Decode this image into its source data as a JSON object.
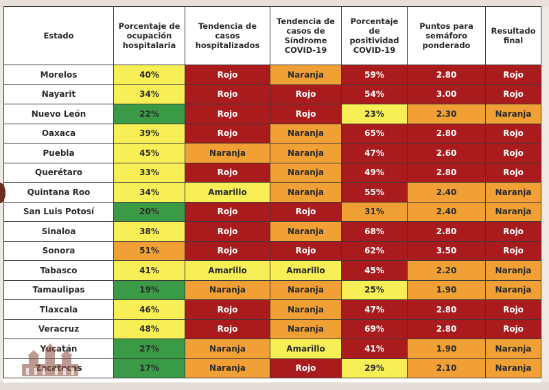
{
  "headers": [
    "Estado",
    "Porcentaje de ocupación hospitalaria",
    "Tendencia de casos hospitalizados",
    "Tendencia de casos de Síndrome COVID-19",
    "Porcentaje de positividad COVID-19",
    "Puntos para semáforo ponderado",
    "Resultado final"
  ],
  "rows": [
    {
      "cells": [
        "Morelos",
        "40%",
        "Rojo",
        "Naranja",
        "59%",
        "2.80",
        "Rojo"
      ],
      "colors": [
        "state",
        "amarillo",
        "rojo",
        "naranja",
        "rojo",
        "rojo",
        "rojo"
      ]
    },
    {
      "cells": [
        "Nayarit",
        "34%",
        "Rojo",
        "Rojo",
        "54%",
        "3.00",
        "Rojo"
      ],
      "colors": [
        "state",
        "amarillo",
        "rojo",
        "rojo",
        "rojo",
        "rojo",
        "rojo"
      ]
    },
    {
      "cells": [
        "Nuevo León",
        "22%",
        "Rojo",
        "Rojo",
        "23%",
        "2.30",
        "Naranja"
      ],
      "colors": [
        "state",
        "verde",
        "rojo",
        "rojo",
        "amarillo",
        "naranja",
        "naranja"
      ]
    },
    {
      "cells": [
        "Oaxaca",
        "39%",
        "Rojo",
        "Naranja",
        "65%",
        "2.80",
        "Rojo"
      ],
      "colors": [
        "state",
        "amarillo",
        "rojo",
        "naranja",
        "rojo",
        "rojo",
        "rojo"
      ]
    },
    {
      "cells": [
        "Puebla",
        "45%",
        "Naranja",
        "Naranja",
        "47%",
        "2.60",
        "Rojo"
      ],
      "colors": [
        "state",
        "amarillo",
        "naranja",
        "naranja",
        "rojo",
        "rojo",
        "rojo"
      ]
    },
    {
      "cells": [
        "Querétaro",
        "33%",
        "Rojo",
        "Naranja",
        "49%",
        "2.80",
        "Rojo"
      ],
      "colors": [
        "state",
        "amarillo",
        "rojo",
        "naranja",
        "rojo",
        "rojo",
        "rojo"
      ]
    },
    {
      "cells": [
        "Quintana Roo",
        "34%",
        "Amarillo",
        "Naranja",
        "55%",
        "2.40",
        "Naranja"
      ],
      "colors": [
        "state",
        "amarillo",
        "amarillo",
        "naranja",
        "rojo",
        "naranja",
        "naranja"
      ]
    },
    {
      "cells": [
        "San Luis Potosí",
        "20%",
        "Rojo",
        "Rojo",
        "31%",
        "2.40",
        "Naranja"
      ],
      "colors": [
        "state",
        "verde",
        "rojo",
        "rojo",
        "naranja",
        "naranja",
        "naranja"
      ]
    },
    {
      "cells": [
        "Sinaloa",
        "38%",
        "Rojo",
        "Naranja",
        "68%",
        "2.80",
        "Rojo"
      ],
      "colors": [
        "state",
        "amarillo",
        "rojo",
        "naranja",
        "rojo",
        "rojo",
        "rojo"
      ]
    },
    {
      "cells": [
        "Sonora",
        "51%",
        "Rojo",
        "Rojo",
        "62%",
        "3.50",
        "Rojo"
      ],
      "colors": [
        "state",
        "naranja",
        "rojo",
        "rojo",
        "rojo",
        "rojo",
        "rojo"
      ]
    },
    {
      "cells": [
        "Tabasco",
        "41%",
        "Amarillo",
        "Amarillo",
        "45%",
        "2.20",
        "Naranja"
      ],
      "colors": [
        "state",
        "amarillo",
        "amarillo",
        "amarillo",
        "rojo",
        "naranja",
        "naranja"
      ]
    },
    {
      "cells": [
        "Tamaulipas",
        "19%",
        "Naranja",
        "Naranja",
        "25%",
        "1.90",
        "Naranja"
      ],
      "colors": [
        "state",
        "verde",
        "naranja",
        "naranja",
        "amarillo",
        "naranja",
        "naranja"
      ]
    },
    {
      "cells": [
        "Tlaxcala",
        "46%",
        "Rojo",
        "Naranja",
        "47%",
        "2.80",
        "Rojo"
      ],
      "colors": [
        "state",
        "amarillo",
        "rojo",
        "naranja",
        "rojo",
        "rojo",
        "rojo"
      ]
    },
    {
      "cells": [
        "Veracruz",
        "48%",
        "Rojo",
        "Naranja",
        "69%",
        "2.80",
        "Rojo"
      ],
      "colors": [
        "state",
        "amarillo",
        "rojo",
        "naranja",
        "rojo",
        "rojo",
        "rojo"
      ]
    },
    {
      "cells": [
        "Yucatán",
        "27%",
        "Naranja",
        "Amarillo",
        "41%",
        "1.90",
        "Naranja"
      ],
      "colors": [
        "state",
        "verde",
        "naranja",
        "amarillo",
        "rojo",
        "naranja",
        "naranja"
      ]
    },
    {
      "cells": [
        "Zacatecas",
        "17%",
        "Naranja",
        "Rojo",
        "29%",
        "2.10",
        "Naranja"
      ],
      "colors": [
        "state",
        "verde",
        "naranja",
        "rojo",
        "amarillo",
        "naranja",
        "naranja"
      ]
    }
  ],
  "colors": {
    "rojo": "#a91b1c",
    "naranja": "#f1a035",
    "amarillo": "#f7ef55",
    "verde": "#3b9a45"
  },
  "watermark_icon": "government-building-logo-icon"
}
